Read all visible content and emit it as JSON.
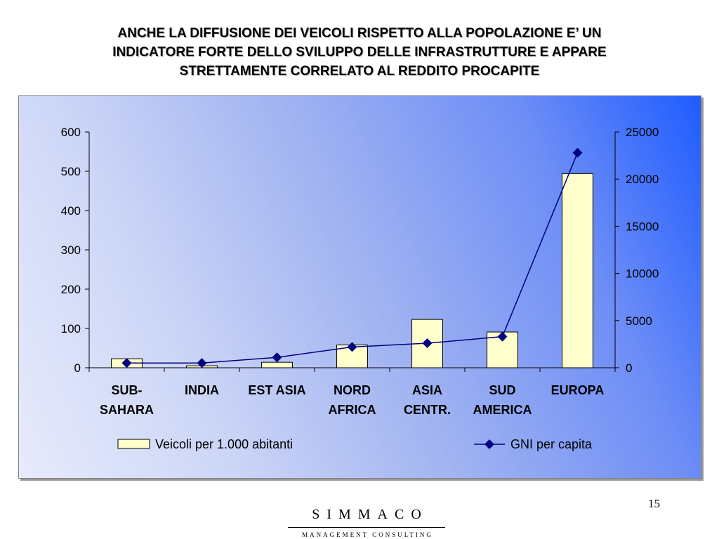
{
  "slide": {
    "title_lines": [
      "ANCHE LA DIFFUSIONE DEI VEICOLI RISPETTO ALLA POPOLAZIONE E’ UN",
      "INDICATORE FORTE DELLO SVILUPPO DELLE INFRASTRUTTURE E APPARE",
      "STRETTAMENTE CORRELATO AL REDDITO PROCAPITE"
    ],
    "page_number": "15"
  },
  "logo": {
    "name": "SIMMACO",
    "subtitle": "MANAGEMENT CONSULTING"
  },
  "colors": {
    "bar_fill": "#ffffcc",
    "line_color": "#000080",
    "marker_color": "#000080",
    "background_gradient": [
      "#1f5cff",
      "#e7ebfb"
    ]
  },
  "chart_data": {
    "type": "bar",
    "categories": [
      [
        "SUB-",
        "SAHARA"
      ],
      [
        "INDIA"
      ],
      [
        "EST ASIA"
      ],
      [
        "NORD",
        "AFRICA"
      ],
      [
        "ASIA",
        "CENTR."
      ],
      [
        "SUD",
        "AMERICA"
      ],
      [
        "EUROPA"
      ]
    ],
    "series": [
      {
        "name": "Veicoli per 1.000 abitanti",
        "type": "bar",
        "axis": "left",
        "values": [
          23,
          5,
          14,
          58,
          123,
          91,
          494
        ]
      },
      {
        "name": "GNI per capita",
        "type": "line",
        "axis": "right",
        "marker": "diamond",
        "values": [
          500,
          500,
          1100,
          2200,
          2600,
          3300,
          22800
        ]
      }
    ],
    "y_left": {
      "min": 0,
      "max": 600,
      "ticks": [
        0,
        100,
        200,
        300,
        400,
        500,
        600
      ]
    },
    "y_right": {
      "min": 0,
      "max": 25000,
      "ticks": [
        0,
        5000,
        10000,
        15000,
        20000,
        25000
      ]
    },
    "legend_position": "bottom",
    "grid": false
  }
}
